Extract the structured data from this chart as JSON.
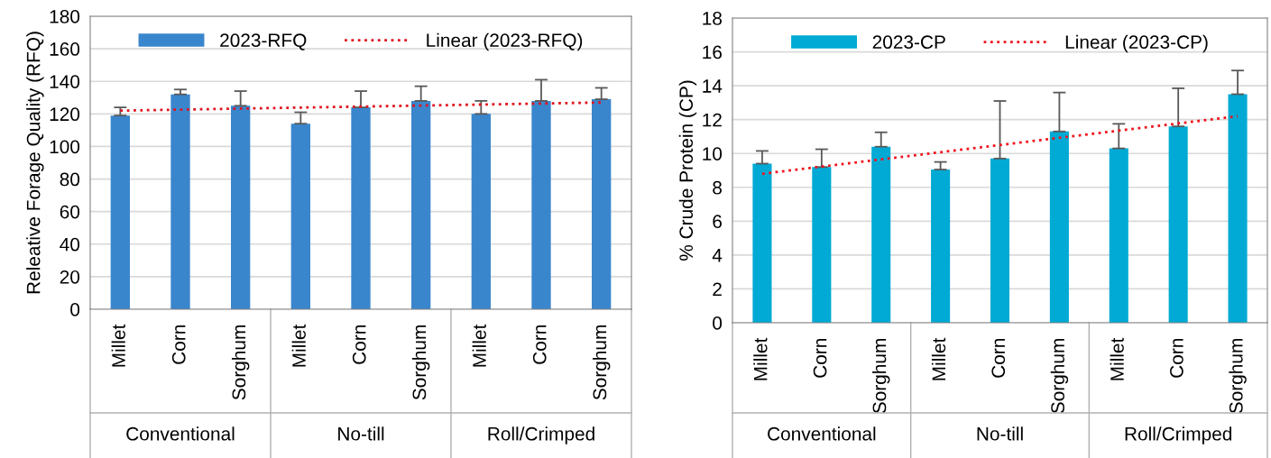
{
  "chart_data": [
    {
      "type": "bar",
      "ylabel": "Releative Forage Quality (RFQ)",
      "categories": [
        "Millet",
        "Corn",
        "Sorghum",
        "Millet",
        "Corn",
        "Sorghum",
        "Millet",
        "Corn",
        "Sorghum"
      ],
      "series": [
        {
          "name": "2023-RFQ",
          "color": "#3a86cd",
          "values": [
            119,
            132,
            125,
            114,
            124,
            128,
            120,
            128,
            129
          ],
          "errors": [
            [
              119,
              124
            ],
            [
              132,
              135
            ],
            [
              125,
              134
            ],
            [
              114,
              121
            ],
            [
              124,
              134
            ],
            [
              128,
              137
            ],
            [
              120,
              128
            ],
            [
              128,
              141
            ],
            [
              129,
              136
            ]
          ]
        },
        {
          "name": "Linear (2023-RFQ)",
          "type": "line",
          "line_style": "dotted",
          "color": "#e0141e",
          "values": [
            122,
            null,
            null,
            null,
            null,
            null,
            null,
            null,
            127
          ]
        }
      ],
      "annotations": [
        "Conventional",
        "No-till",
        "Roll/Crimped"
      ],
      "ylim": [
        0,
        180
      ],
      "yticks": [
        0,
        20,
        40,
        60,
        80,
        100,
        120,
        140,
        160,
        180
      ],
      "grid": "y",
      "legend": "top"
    },
    {
      "type": "bar",
      "ylabel": "% Crude Protein (CP)",
      "categories": [
        "Millet",
        "Corn",
        "Sorghum",
        "Millet",
        "Corn",
        "Sorghum",
        "Millet",
        "Corn",
        "Sorghum"
      ],
      "series": [
        {
          "name": "2023-CP",
          "color": "#00aad4",
          "values": [
            9.4,
            9.2,
            10.4,
            9.05,
            9.7,
            11.3,
            10.3,
            11.6,
            13.5
          ],
          "errors": [
            [
              9.4,
              10.15
            ],
            [
              9.2,
              10.25
            ],
            [
              10.4,
              11.25
            ],
            [
              9.05,
              9.5
            ],
            [
              9.7,
              13.1
            ],
            [
              11.3,
              13.6
            ],
            [
              10.3,
              11.75
            ],
            [
              11.6,
              13.85
            ],
            [
              13.5,
              14.9
            ]
          ]
        },
        {
          "name": "Linear (2023-CP)",
          "type": "line",
          "line_style": "dotted",
          "color": "#f0141e",
          "values": [
            8.8,
            null,
            null,
            null,
            null,
            null,
            null,
            null,
            12.2
          ]
        }
      ],
      "annotations": [
        "Conventional",
        "No-till",
        "Roll/Crimped"
      ],
      "ylim": [
        0,
        18
      ],
      "yticks": [
        0,
        2,
        4,
        6,
        8,
        10,
        12,
        14,
        16,
        18
      ],
      "grid": "y",
      "legend": "top"
    }
  ]
}
